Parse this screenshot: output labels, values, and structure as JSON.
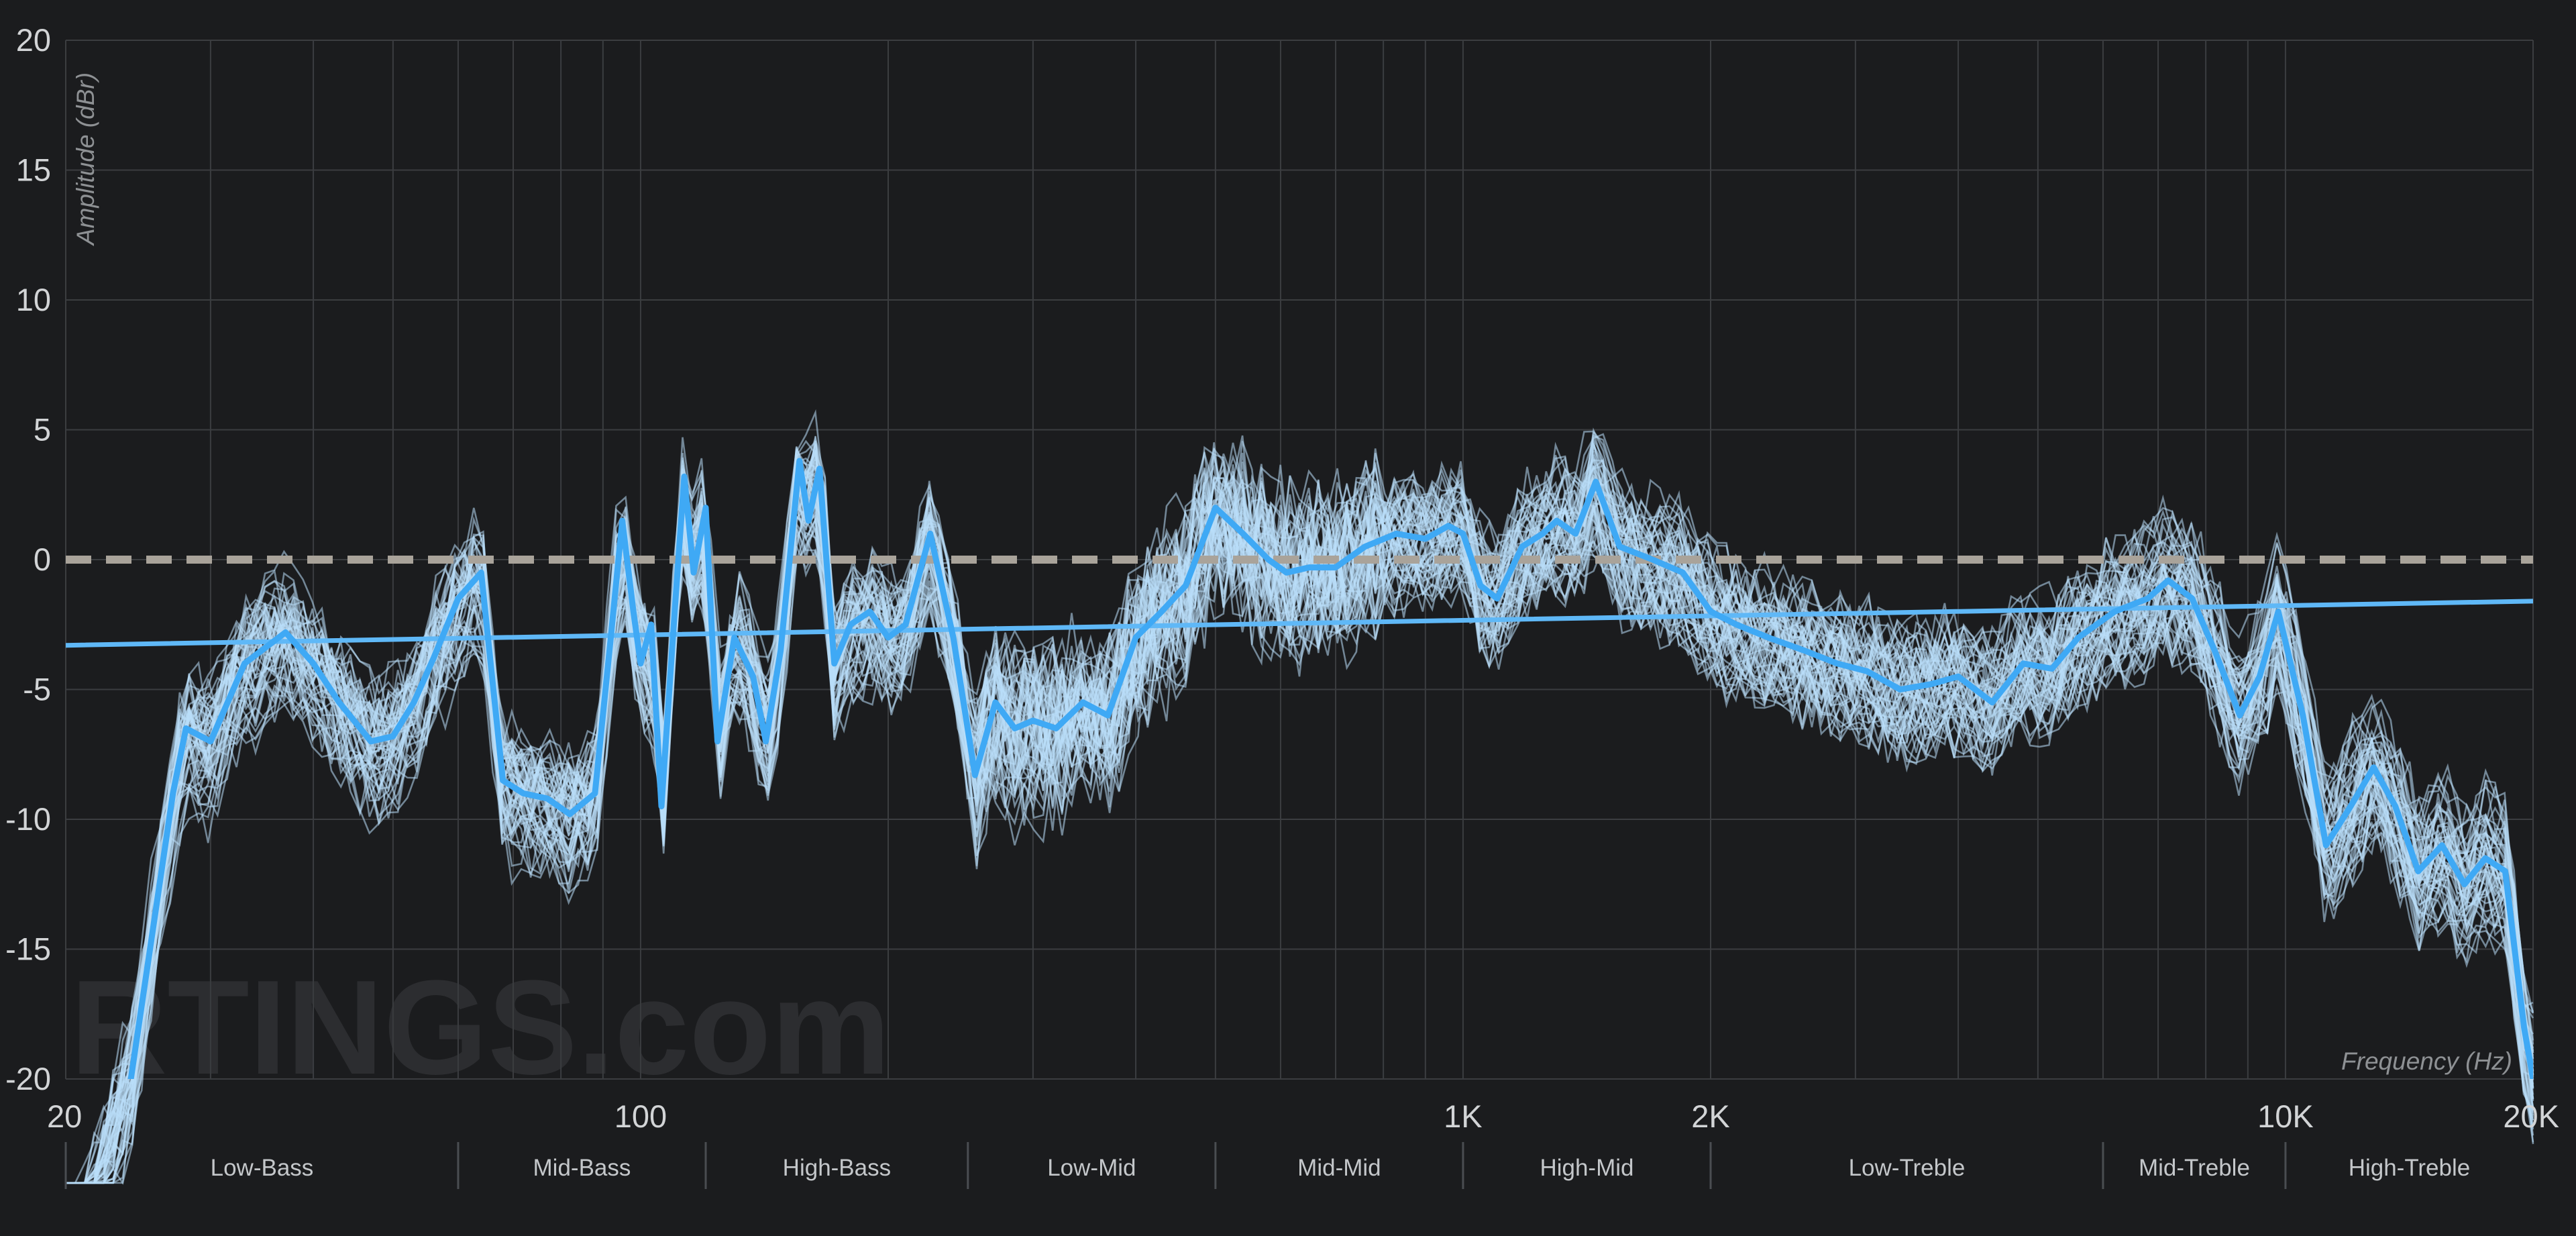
{
  "chart_data": {
    "type": "line",
    "ylabel": "Amplitude (dBr)",
    "xlabel": "Frequency (Hz)",
    "x_scale": "log",
    "xlim": [
      20,
      20000
    ],
    "ylim": [
      -20,
      20
    ],
    "grid": true,
    "y_ticks": [
      20,
      15,
      10,
      5,
      0,
      -5,
      -10,
      -15,
      -20
    ],
    "y_tick_labels": [
      "20",
      "15",
      "10",
      "5",
      "0",
      "-5",
      "-10",
      "-15",
      "-20"
    ],
    "x_ticks": [
      20,
      100,
      1000,
      2000,
      10000,
      20000
    ],
    "x_tick_labels": [
      "20",
      "100",
      "1K",
      "2K",
      "10K",
      "20K"
    ],
    "bands": [
      {
        "label": "Low-Bass",
        "from": 20,
        "to": 60
      },
      {
        "label": "Mid-Bass",
        "from": 60,
        "to": 120
      },
      {
        "label": "High-Bass",
        "from": 120,
        "to": 250
      },
      {
        "label": "Low-Mid",
        "from": 250,
        "to": 500
      },
      {
        "label": "Mid-Mid",
        "from": 500,
        "to": 1000
      },
      {
        "label": "High-Mid",
        "from": 1000,
        "to": 2000
      },
      {
        "label": "Low-Treble",
        "from": 2000,
        "to": 6000
      },
      {
        "label": "Mid-Treble",
        "from": 6000,
        "to": 10000
      },
      {
        "label": "High-Treble",
        "from": 10000,
        "to": 20000
      }
    ],
    "reference_lines": [
      {
        "type": "dashed",
        "y": 0,
        "color": "#a9a39a"
      }
    ],
    "series": [
      {
        "color": "#3fa9f5",
        "x": [
          20,
          24,
          27,
          28,
          30,
          33,
          37,
          40,
          43,
          47,
          50,
          53,
          56,
          60,
          64,
          68,
          72,
          77,
          82,
          88,
          92,
          95,
          98,
          100,
          103,
          106,
          110,
          113,
          116,
          120,
          124,
          130,
          137,
          142,
          148,
          156,
          160,
          165,
          172,
          180,
          190,
          200,
          210,
          225,
          240,
          255,
          270,
          285,
          300,
          320,
          345,
          370,
          400,
          430,
          460,
          500,
          540,
          580,
          610,
          650,
          700,
          760,
          830,
          900,
          960,
          1000,
          1050,
          1100,
          1180,
          1250,
          1300,
          1370,
          1450,
          1550,
          1700,
          1850,
          2000,
          2150,
          2350,
          2600,
          2850,
          3100,
          3400,
          3700,
          4000,
          4400,
          4800,
          5200,
          5600,
          6200,
          6800,
          7200,
          7700,
          8200,
          8800,
          9300,
          9800,
          10500,
          11200,
          12000,
          12800,
          13600,
          14500,
          15500,
          16500,
          17500,
          18500,
          19500,
          20000
        ],
        "y": [
          -28,
          -20,
          -9,
          -6.5,
          -7,
          -4,
          -2.8,
          -4,
          -5.5,
          -7,
          -6.8,
          -5.5,
          -3.8,
          -1.5,
          -0.5,
          -8.5,
          -9,
          -9.2,
          -9.8,
          -9,
          -3,
          1.5,
          -2,
          -4,
          -2.5,
          -9.5,
          -2,
          3.2,
          -0.5,
          2,
          -7,
          -3,
          -4.5,
          -7,
          -3.5,
          3.8,
          1.5,
          3.5,
          -4,
          -2.5,
          -2,
          -3,
          -2.5,
          1,
          -3,
          -8.3,
          -5.5,
          -6.5,
          -6.2,
          -6.5,
          -5.5,
          -6,
          -3,
          -2,
          -1,
          2,
          1,
          0,
          -0.5,
          -0.3,
          -0.3,
          0.5,
          1,
          0.8,
          1.3,
          1,
          -1,
          -1.5,
          0.5,
          1,
          1.5,
          1,
          3,
          0.5,
          0,
          -0.5,
          -2,
          -2.5,
          -3,
          -3.5,
          -4,
          -4.3,
          -5,
          -4.8,
          -4.5,
          -5.5,
          -4,
          -4.2,
          -3,
          -2,
          -1.5,
          -0.8,
          -1.5,
          -3.5,
          -6,
          -4.5,
          -2,
          -6,
          -11,
          -9.5,
          -8,
          -9.5,
          -12,
          -11,
          -12.5,
          -11.5,
          -12,
          -18,
          -20
        ]
      },
      {
        "color": "#5fb8f7",
        "x": [
          20,
          20000
        ],
        "y": [
          -3.3,
          -1.6
        ]
      }
    ],
    "sample_curves_color": "#b9dff9"
  },
  "branding": {
    "watermark": "RTINGS.com"
  }
}
